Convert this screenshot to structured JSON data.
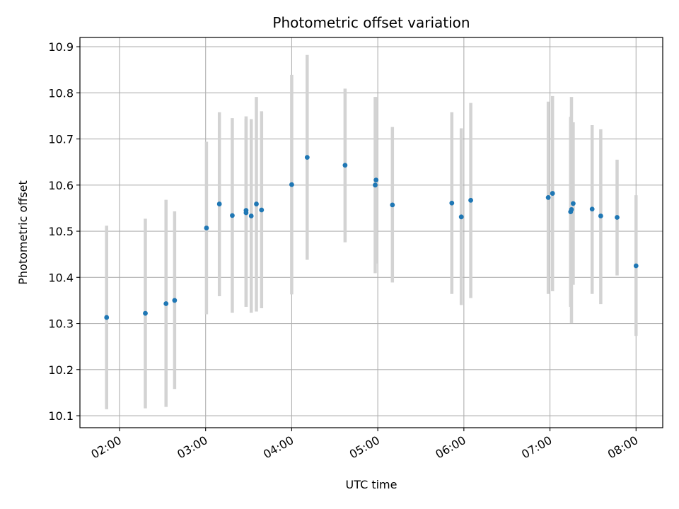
{
  "chart_data": {
    "type": "scatter",
    "title": "Photometric offset variation",
    "xlabel": "UTC time",
    "ylabel": "Photometric offset",
    "x_unit": "hours UTC",
    "xlim": [
      1.54,
      8.31
    ],
    "ylim": [
      10.074,
      10.92
    ],
    "x_ticks": [
      2,
      3,
      4,
      5,
      6,
      7,
      8
    ],
    "x_tick_labels": [
      "02:00",
      "03:00",
      "04:00",
      "05:00",
      "06:00",
      "07:00",
      "08:00"
    ],
    "y_ticks": [
      10.1,
      10.2,
      10.3,
      10.4,
      10.5,
      10.6,
      10.7,
      10.8,
      10.9
    ],
    "y_tick_labels": [
      "10.1",
      "10.2",
      "10.3",
      "10.4",
      "10.5",
      "10.6",
      "10.7",
      "10.8",
      "10.9"
    ],
    "grid": true,
    "marker_color": "#1f77b4",
    "errorbar_color": "#d3d3d3",
    "points": [
      {
        "x": 1.85,
        "y": 10.313,
        "ylow": 10.114,
        "yhigh": 10.512
      },
      {
        "x": 2.3,
        "y": 10.322,
        "ylow": 10.116,
        "yhigh": 10.527
      },
      {
        "x": 2.54,
        "y": 10.343,
        "ylow": 10.119,
        "yhigh": 10.568
      },
      {
        "x": 2.64,
        "y": 10.35,
        "ylow": 10.158,
        "yhigh": 10.543
      },
      {
        "x": 3.01,
        "y": 10.507,
        "ylow": 10.32,
        "yhigh": 10.694
      },
      {
        "x": 3.16,
        "y": 10.559,
        "ylow": 10.359,
        "yhigh": 10.758
      },
      {
        "x": 3.31,
        "y": 10.534,
        "ylow": 10.323,
        "yhigh": 10.745
      },
      {
        "x": 3.47,
        "y": 10.545,
        "ylow": 10.336,
        "yhigh": 10.749
      },
      {
        "x": 3.47,
        "y": 10.54,
        "ylow": 10.336,
        "yhigh": 10.744
      },
      {
        "x": 3.53,
        "y": 10.533,
        "ylow": 10.323,
        "yhigh": 10.743
      },
      {
        "x": 3.59,
        "y": 10.559,
        "ylow": 10.326,
        "yhigh": 10.791
      },
      {
        "x": 3.65,
        "y": 10.546,
        "ylow": 10.333,
        "yhigh": 10.76
      },
      {
        "x": 4.0,
        "y": 10.601,
        "ylow": 10.363,
        "yhigh": 10.839
      },
      {
        "x": 4.18,
        "y": 10.66,
        "ylow": 10.438,
        "yhigh": 10.882
      },
      {
        "x": 4.62,
        "y": 10.643,
        "ylow": 10.476,
        "yhigh": 10.809
      },
      {
        "x": 4.97,
        "y": 10.6,
        "ylow": 10.409,
        "yhigh": 10.791
      },
      {
        "x": 4.98,
        "y": 10.611,
        "ylow": 10.43,
        "yhigh": 10.791
      },
      {
        "x": 5.17,
        "y": 10.557,
        "ylow": 10.389,
        "yhigh": 10.726
      },
      {
        "x": 5.86,
        "y": 10.561,
        "ylow": 10.364,
        "yhigh": 10.758
      },
      {
        "x": 5.97,
        "y": 10.531,
        "ylow": 10.34,
        "yhigh": 10.723
      },
      {
        "x": 6.08,
        "y": 10.567,
        "ylow": 10.355,
        "yhigh": 10.778
      },
      {
        "x": 6.98,
        "y": 10.573,
        "ylow": 10.364,
        "yhigh": 10.781
      },
      {
        "x": 7.03,
        "y": 10.582,
        "ylow": 10.37,
        "yhigh": 10.793
      },
      {
        "x": 7.24,
        "y": 10.542,
        "ylow": 10.336,
        "yhigh": 10.748
      },
      {
        "x": 7.25,
        "y": 10.547,
        "ylow": 10.301,
        "yhigh": 10.791
      },
      {
        "x": 7.27,
        "y": 10.56,
        "ylow": 10.384,
        "yhigh": 10.736
      },
      {
        "x": 7.49,
        "y": 10.548,
        "ylow": 10.364,
        "yhigh": 10.73
      },
      {
        "x": 7.59,
        "y": 10.533,
        "ylow": 10.342,
        "yhigh": 10.721
      },
      {
        "x": 7.78,
        "y": 10.53,
        "ylow": 10.404,
        "yhigh": 10.655
      },
      {
        "x": 8.0,
        "y": 10.425,
        "ylow": 10.273,
        "yhigh": 10.578
      }
    ]
  }
}
